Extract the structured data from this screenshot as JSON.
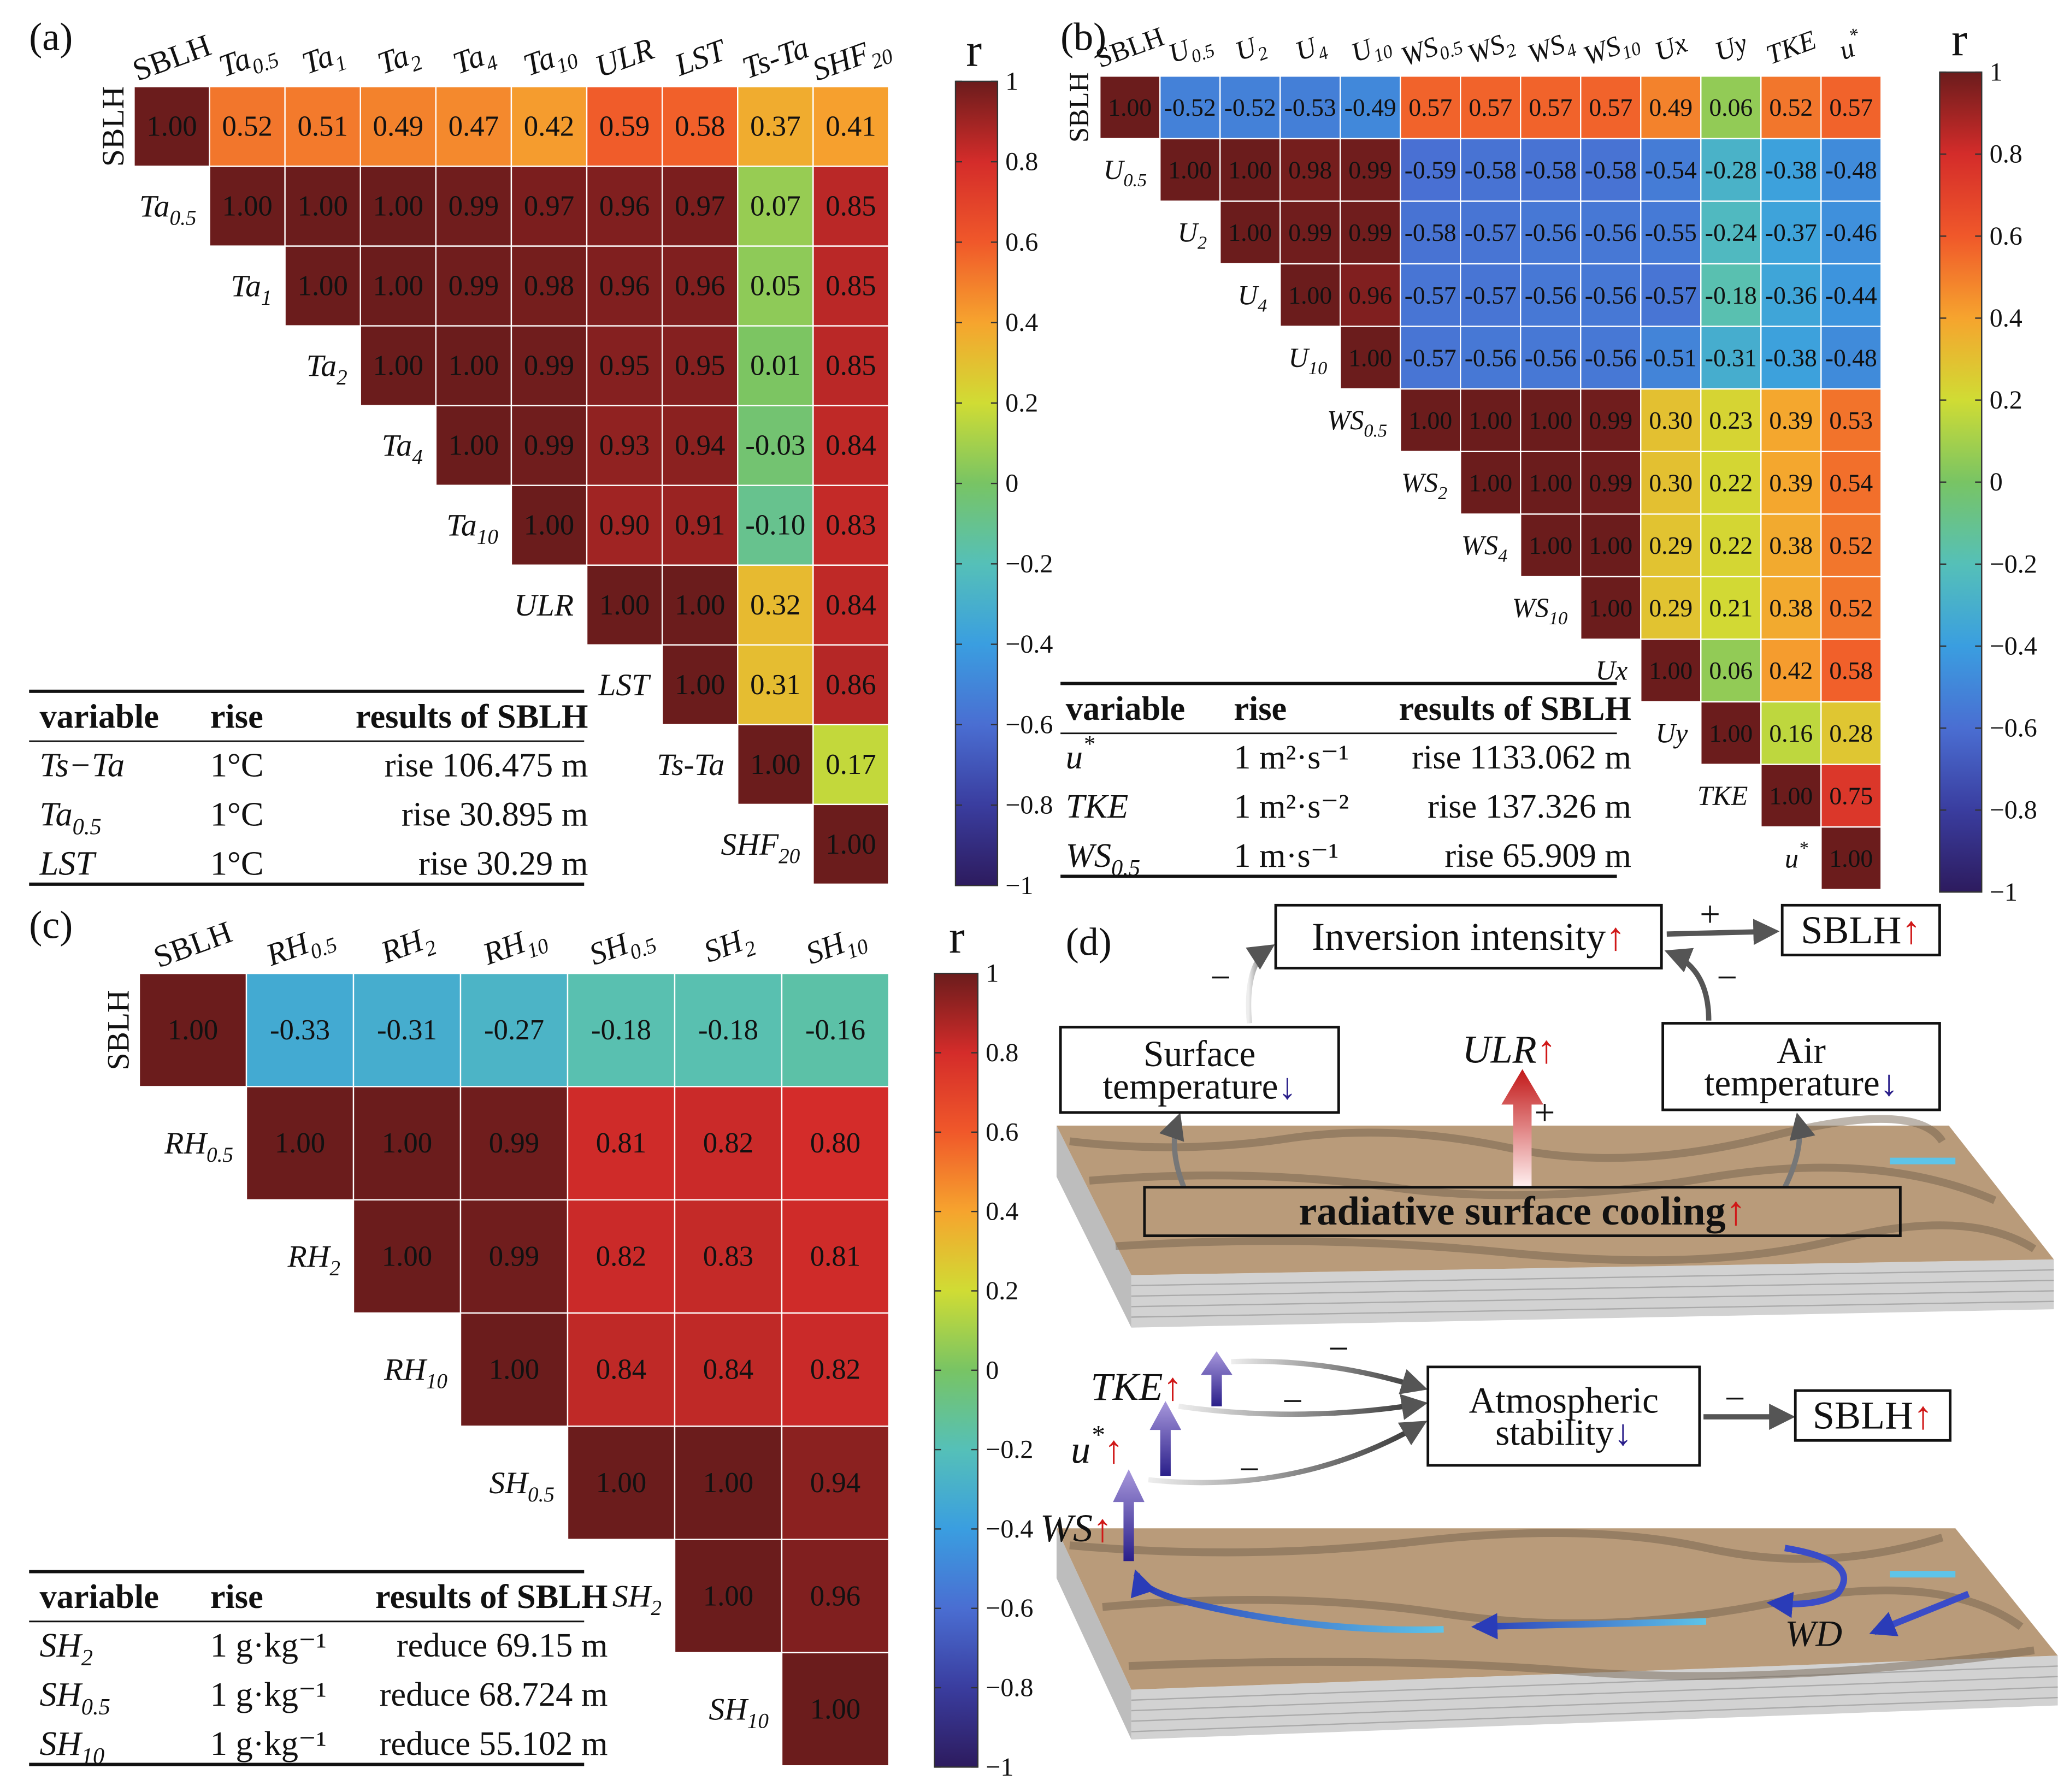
{
  "panel_labels": [
    "(a)",
    "(b)",
    "(c)",
    "(d)"
  ],
  "chart_data": [
    {
      "type": "heatmap",
      "variables": [
        {
          "text": "SBLH"
        },
        {
          "text": "Ta",
          "sub": "0.5"
        },
        {
          "text": "Ta",
          "sub": "1"
        },
        {
          "text": "Ta",
          "sub": "2"
        },
        {
          "text": "Ta",
          "sub": "4"
        },
        {
          "text": "Ta",
          "sub": "10"
        },
        {
          "text": "ULR"
        },
        {
          "text": "LST"
        },
        {
          "text": "Ts-Ta"
        },
        {
          "text": "SHF",
          "sub": "20"
        }
      ],
      "values": [
        [
          1,
          0.52,
          0.51,
          0.49,
          0.47,
          0.42,
          0.59,
          0.58,
          0.37,
          0.41
        ],
        [
          1,
          1,
          1,
          0.99,
          0.97,
          0.96,
          0.97,
          0.07,
          0.85
        ],
        [
          1,
          1,
          0.99,
          0.98,
          0.96,
          0.96,
          0.05,
          0.85
        ],
        [
          1,
          1,
          0.99,
          0.95,
          0.95,
          0.01,
          0.85
        ],
        [
          1,
          0.99,
          0.93,
          0.94,
          -0.03,
          0.84
        ],
        [
          1,
          0.9,
          0.91,
          -0.1,
          0.83
        ],
        [
          1,
          1,
          0.32,
          0.84
        ],
        [
          1,
          0.31,
          0.86
        ],
        [
          1,
          0.17
        ],
        [
          1
        ]
      ],
      "value_labels": [
        [
          "1.00",
          "0.52",
          "0.51",
          "0.49",
          "0.47",
          "0.42",
          "0.59",
          "0.58",
          "0.37",
          "0.41"
        ],
        [
          "1.00",
          "1.00",
          "1.00",
          "0.99",
          "0.97",
          "0.96",
          "0.97",
          "0.07",
          "0.85"
        ],
        [
          "1.00",
          "1.00",
          "0.99",
          "0.98",
          "0.96",
          "0.96",
          "0.05",
          "0.85"
        ],
        [
          "1.00",
          "1.00",
          "0.99",
          "0.95",
          "0.95",
          "0.01",
          "0.85"
        ],
        [
          "1.00",
          "0.99",
          "0.93",
          "0.94",
          "-0.03",
          "0.84"
        ],
        [
          "1.00",
          "0.90",
          "0.91",
          "-0.10",
          "0.83"
        ],
        [
          "1.00",
          "1.00",
          "0.32",
          "0.84"
        ],
        [
          "1.00",
          "0.31",
          "0.86"
        ],
        [
          "1.00",
          "0.17"
        ],
        [
          "1.00"
        ]
      ],
      "colormap": [
        "#2d1b5e",
        "#3a3d9f",
        "#4a6ed2",
        "#3a9ee0",
        "#55c0b8",
        "#78c464",
        "#d0dc34",
        "#f6a42e",
        "#f0582a",
        "#d42c2a",
        "#6b1c1c"
      ],
      "colorbar": {
        "label": "r",
        "clim": [
          -1,
          1
        ],
        "ticks": [
          1,
          0.8,
          0.6,
          0.4,
          0.2,
          0,
          {
            "value": -0.2,
            "label": "−0.2"
          },
          {
            "value": -0.4,
            "label": "−0.4"
          },
          {
            "value": -0.6,
            "label": "−0.6"
          },
          {
            "value": -0.8,
            "label": "−0.8"
          },
          {
            "value": -1,
            "label": "−1"
          }
        ]
      },
      "table": {
        "header": [
          "variable",
          "rise",
          "results of SBLH"
        ],
        "rows": [
          [
            {
              "text": "Ts−Ta"
            },
            "1°C",
            "rise 106.475 m"
          ],
          [
            {
              "text": "Ta",
              "sub": "0.5"
            },
            "1°C",
            "rise 30.895 m"
          ],
          [
            {
              "text": "LST"
            },
            "1°C",
            "rise 30.29 m"
          ]
        ]
      }
    },
    {
      "type": "heatmap",
      "variables": [
        {
          "text": "SBLH"
        },
        {
          "text": "U",
          "sub": "0.5"
        },
        {
          "text": "U",
          "sub": "2"
        },
        {
          "text": "U",
          "sub": "4"
        },
        {
          "text": "U",
          "sub": "10"
        },
        {
          "text": "WS",
          "sub": "0.5"
        },
        {
          "text": "WS",
          "sub": "2"
        },
        {
          "text": "WS",
          "sub": "4"
        },
        {
          "text": "WS",
          "sub": "10"
        },
        {
          "text": "Ux"
        },
        {
          "text": "Uy"
        },
        {
          "text": "TKE"
        },
        {
          "text": "u",
          "sup": "*"
        }
      ],
      "values": [
        [
          1,
          -0.52,
          -0.52,
          -0.53,
          -0.49,
          0.57,
          0.57,
          0.57,
          0.57,
          0.49,
          0.06,
          0.52,
          0.57
        ],
        [
          1,
          1,
          0.98,
          0.99,
          -0.59,
          -0.58,
          -0.58,
          -0.58,
          -0.54,
          -0.28,
          -0.38,
          -0.48
        ],
        [
          1,
          0.99,
          0.99,
          -0.58,
          -0.57,
          -0.56,
          -0.56,
          -0.55,
          -0.24,
          -0.37,
          -0.46
        ],
        [
          1,
          0.96,
          -0.57,
          -0.57,
          -0.56,
          -0.56,
          -0.57,
          -0.18,
          -0.36,
          -0.44
        ],
        [
          1,
          -0.57,
          -0.56,
          -0.56,
          -0.56,
          -0.51,
          -0.31,
          -0.38,
          -0.48
        ],
        [
          1,
          1,
          1,
          0.99,
          0.3,
          0.23,
          0.39,
          0.53
        ],
        [
          1,
          1,
          0.99,
          0.3,
          0.22,
          0.39,
          0.54
        ],
        [
          1,
          1,
          0.29,
          0.22,
          0.38,
          0.52
        ],
        [
          1,
          0.29,
          0.21,
          0.38,
          0.52
        ],
        [
          1,
          0.06,
          0.42,
          0.58
        ],
        [
          1,
          0.16,
          0.28
        ],
        [
          1,
          0.75
        ],
        [
          1
        ]
      ],
      "value_labels": [
        [
          "1.00",
          "-0.52",
          "-0.52",
          "-0.53",
          "-0.49",
          "0.57",
          "0.57",
          "0.57",
          "0.57",
          "0.49",
          "0.06",
          "0.52",
          "0.57"
        ],
        [
          "1.00",
          "1.00",
          "0.98",
          "0.99",
          "-0.59",
          "-0.58",
          "-0.58",
          "-0.58",
          "-0.54",
          "-0.28",
          "-0.38",
          "-0.48"
        ],
        [
          "1.00",
          "0.99",
          "0.99",
          "-0.58",
          "-0.57",
          "-0.56",
          "-0.56",
          "-0.55",
          "-0.24",
          "-0.37",
          "-0.46"
        ],
        [
          "1.00",
          "0.96",
          "-0.57",
          "-0.57",
          "-0.56",
          "-0.56",
          "-0.57",
          "-0.18",
          "-0.36",
          "-0.44"
        ],
        [
          "1.00",
          "-0.57",
          "-0.56",
          "-0.56",
          "-0.56",
          "-0.51",
          "-0.31",
          "-0.38",
          "-0.48"
        ],
        [
          "1.00",
          "1.00",
          "1.00",
          "0.99",
          "0.30",
          "0.23",
          "0.39",
          "0.53"
        ],
        [
          "1.00",
          "1.00",
          "0.99",
          "0.30",
          "0.22",
          "0.39",
          "0.54"
        ],
        [
          "1.00",
          "1.00",
          "0.29",
          "0.22",
          "0.38",
          "0.52"
        ],
        [
          "1.00",
          "0.29",
          "0.21",
          "0.38",
          "0.52"
        ],
        [
          "1.00",
          "0.06",
          "0.42",
          "0.58"
        ],
        [
          "1.00",
          "0.16",
          "0.28"
        ],
        [
          "1.00",
          "0.75"
        ],
        [
          "1.00"
        ]
      ],
      "colormap": [
        "#2d1b5e",
        "#3a3d9f",
        "#4a6ed2",
        "#3a9ee0",
        "#55c0b8",
        "#78c464",
        "#d0dc34",
        "#f6a42e",
        "#f0582a",
        "#d42c2a",
        "#6b1c1c"
      ],
      "colorbar": {
        "label": "r",
        "clim": [
          -1,
          1
        ],
        "ticks": [
          1,
          0.8,
          0.6,
          0.4,
          0.2,
          0,
          {
            "value": -0.2,
            "label": "−0.2"
          },
          {
            "value": -0.4,
            "label": "−0.4"
          },
          {
            "value": -0.6,
            "label": "−0.6"
          },
          {
            "value": -0.8,
            "label": "−0.8"
          },
          {
            "value": -1,
            "label": "−1"
          }
        ]
      },
      "table": {
        "header": [
          "variable",
          "rise",
          "results of SBLH"
        ],
        "rows": [
          [
            {
              "text": "u",
              "sup": "*"
            },
            "1 m²·s⁻¹",
            "rise 1133.062 m"
          ],
          [
            {
              "text": "TKE"
            },
            "1 m²·s⁻²",
            "rise 137.326 m"
          ],
          [
            {
              "text": "WS",
              "sub": "0.5"
            },
            "1 m·s⁻¹",
            "rise 65.909 m"
          ]
        ]
      }
    },
    {
      "type": "heatmap",
      "variables": [
        {
          "text": "SBLH"
        },
        {
          "text": "RH",
          "sub": "0.5"
        },
        {
          "text": "RH",
          "sub": "2"
        },
        {
          "text": "RH",
          "sub": "10"
        },
        {
          "text": "SH",
          "sub": "0.5"
        },
        {
          "text": "SH",
          "sub": "2"
        },
        {
          "text": "SH",
          "sub": "10"
        }
      ],
      "values": [
        [
          1,
          -0.33,
          -0.31,
          -0.27,
          -0.18,
          -0.18,
          -0.16
        ],
        [
          1,
          1,
          0.99,
          0.81,
          0.82,
          0.8
        ],
        [
          1,
          0.99,
          0.82,
          0.83,
          0.81
        ],
        [
          1,
          0.84,
          0.84,
          0.82
        ],
        [
          1,
          1,
          0.94
        ],
        [
          1,
          0.96
        ],
        [
          1
        ]
      ],
      "value_labels": [
        [
          "1.00",
          "-0.33",
          "-0.31",
          "-0.27",
          "-0.18",
          "-0.18",
          "-0.16"
        ],
        [
          "1.00",
          "1.00",
          "0.99",
          "0.81",
          "0.82",
          "0.80"
        ],
        [
          "1.00",
          "0.99",
          "0.82",
          "0.83",
          "0.81"
        ],
        [
          "1.00",
          "0.84",
          "0.84",
          "0.82"
        ],
        [
          "1.00",
          "1.00",
          "0.94"
        ],
        [
          "1.00",
          "0.96"
        ],
        [
          "1.00"
        ]
      ],
      "colormap": [
        "#2d1b5e",
        "#3a3d9f",
        "#4a6ed2",
        "#3a9ee0",
        "#55c0b8",
        "#78c464",
        "#d0dc34",
        "#f6a42e",
        "#f0582a",
        "#d42c2a",
        "#6b1c1c"
      ],
      "colorbar": {
        "label": "r",
        "clim": [
          -1,
          1
        ],
        "ticks": [
          1,
          0.8,
          0.6,
          0.4,
          0.2,
          0,
          {
            "value": -0.2,
            "label": "−0.2"
          },
          {
            "value": -0.4,
            "label": "−0.4"
          },
          {
            "value": -0.6,
            "label": "−0.6"
          },
          {
            "value": -0.8,
            "label": "−0.8"
          },
          {
            "value": -1,
            "label": "−1"
          }
        ]
      },
      "table": {
        "header": [
          "variable",
          "rise",
          "results of SBLH"
        ],
        "rows": [
          [
            {
              "text": "SH",
              "sub": "2"
            },
            "1 g·kg⁻¹",
            "reduce 69.15 m"
          ],
          [
            {
              "text": "SH",
              "sub": "0.5"
            },
            "1 g·kg⁻¹",
            "reduce 68.724 m"
          ],
          [
            {
              "text": "SH",
              "sub": "10"
            },
            "1 g·kg⁻¹",
            "reduce 55.102 m"
          ]
        ]
      }
    }
  ],
  "diagram": {
    "boxes": [
      {
        "lines": [
          "Inversion intensity"
        ],
        "arrow": "↑"
      },
      {
        "lines": [
          "SBLH"
        ],
        "arrow": "↑"
      },
      {
        "lines": [
          "Surface",
          "temperature"
        ],
        "arrow": "↓"
      },
      {
        "lines": [
          "Air",
          "temperature"
        ],
        "arrow": "↓"
      },
      {
        "lines": [
          "radiative surface cooling"
        ],
        "arrow": "↑"
      },
      {
        "lines": [
          "Atmospheric",
          "stability"
        ],
        "arrow": "↓"
      },
      {
        "lines": [
          "SBLH"
        ],
        "arrow": "↑"
      }
    ],
    "labels": [
      {
        "text": "ULR",
        "arrow": "↑"
      },
      {
        "text": "TKE",
        "arrow": "↑"
      },
      {
        "text": "u",
        "sup": "*",
        "arrow": "↑"
      },
      {
        "text": "WS",
        "arrow": "↑"
      },
      {
        "text": "WD"
      }
    ],
    "signs": [
      "+",
      "−",
      "−",
      "+",
      "−",
      "−",
      "−",
      "−"
    ]
  }
}
